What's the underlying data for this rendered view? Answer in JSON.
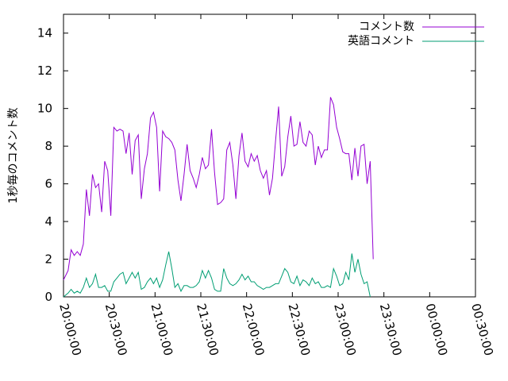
{
  "chart_data": {
    "type": "line",
    "title": "",
    "xlabel": "",
    "ylabel": "1秒毎のコメント数",
    "ylim": [
      0,
      15
    ],
    "yticks": [
      0,
      2,
      4,
      6,
      8,
      10,
      12,
      14
    ],
    "xlim": [
      "20:00:00",
      "00:30:00"
    ],
    "xtick_labels": [
      "20:00:00",
      "20:30:00",
      "21:00:00",
      "21:30:00",
      "22:00:00",
      "22:30:00",
      "23:00:00",
      "23:30:00",
      "00:00:00",
      "00:30:00"
    ],
    "legend_position": "top-right",
    "grid": false,
    "series": [
      {
        "name": "コメント数",
        "color": "#9400d3",
        "points": [
          [
            "20:00:00",
            0.9
          ],
          [
            "20:03:00",
            1.4
          ],
          [
            "20:05:00",
            2.5
          ],
          [
            "20:07:00",
            2.2
          ],
          [
            "20:09:00",
            2.4
          ],
          [
            "20:11:00",
            2.2
          ],
          [
            "20:13:00",
            2.8
          ],
          [
            "20:15:00",
            5.7
          ],
          [
            "20:17:00",
            4.3
          ],
          [
            "20:19:00",
            6.5
          ],
          [
            "20:21:00",
            5.8
          ],
          [
            "20:23:00",
            6.0
          ],
          [
            "20:25:00",
            4.5
          ],
          [
            "20:27:00",
            7.2
          ],
          [
            "20:29:00",
            6.7
          ],
          [
            "20:31:00",
            4.3
          ],
          [
            "20:33:00",
            9.0
          ],
          [
            "20:35:00",
            8.8
          ],
          [
            "20:37:00",
            8.9
          ],
          [
            "20:39:00",
            8.8
          ],
          [
            "20:41:00",
            7.6
          ],
          [
            "20:43:00",
            8.7
          ],
          [
            "20:45:00",
            6.5
          ],
          [
            "20:47:00",
            8.3
          ],
          [
            "20:49:00",
            8.6
          ],
          [
            "20:51:00",
            5.2
          ],
          [
            "20:53:00",
            6.8
          ],
          [
            "20:55:00",
            7.6
          ],
          [
            "20:57:00",
            9.5
          ],
          [
            "20:59:00",
            9.8
          ],
          [
            "21:01:00",
            9.0
          ],
          [
            "21:03:00",
            5.6
          ],
          [
            "21:05:00",
            8.8
          ],
          [
            "21:07:00",
            8.5
          ],
          [
            "21:09:00",
            8.4
          ],
          [
            "21:11:00",
            8.2
          ],
          [
            "21:13:00",
            7.8
          ],
          [
            "21:15:00",
            6.2
          ],
          [
            "21:17:00",
            5.1
          ],
          [
            "21:19:00",
            6.5
          ],
          [
            "21:21:00",
            8.1
          ],
          [
            "21:23:00",
            6.7
          ],
          [
            "21:25:00",
            6.3
          ],
          [
            "21:27:00",
            5.8
          ],
          [
            "21:29:00",
            6.5
          ],
          [
            "21:31:00",
            7.4
          ],
          [
            "21:33:00",
            6.8
          ],
          [
            "21:35:00",
            7.0
          ],
          [
            "21:37:00",
            8.9
          ],
          [
            "21:39:00",
            6.6
          ],
          [
            "21:41:00",
            4.9
          ],
          [
            "21:43:00",
            5.0
          ],
          [
            "21:45:00",
            5.2
          ],
          [
            "21:47:00",
            7.8
          ],
          [
            "21:49:00",
            8.2
          ],
          [
            "21:51:00",
            7.0
          ],
          [
            "21:53:00",
            5.2
          ],
          [
            "21:55:00",
            7.5
          ],
          [
            "21:57:00",
            8.7
          ],
          [
            "21:59:00",
            7.2
          ],
          [
            "22:01:00",
            6.9
          ],
          [
            "22:03:00",
            7.6
          ],
          [
            "22:05:00",
            7.2
          ],
          [
            "22:07:00",
            7.5
          ],
          [
            "22:09:00",
            6.7
          ],
          [
            "22:11:00",
            6.3
          ],
          [
            "22:13:00",
            6.7
          ],
          [
            "22:15:00",
            5.4
          ],
          [
            "22:17:00",
            6.3
          ],
          [
            "22:19:00",
            8.3
          ],
          [
            "22:21:00",
            10.1
          ],
          [
            "22:23:00",
            6.4
          ],
          [
            "22:25:00",
            6.9
          ],
          [
            "22:27:00",
            8.5
          ],
          [
            "22:29:00",
            9.6
          ],
          [
            "22:31:00",
            8.0
          ],
          [
            "22:33:00",
            8.1
          ],
          [
            "22:35:00",
            9.3
          ],
          [
            "22:37:00",
            8.2
          ],
          [
            "22:39:00",
            8.0
          ],
          [
            "22:41:00",
            8.8
          ],
          [
            "22:43:00",
            8.6
          ],
          [
            "22:45:00",
            7.0
          ],
          [
            "22:47:00",
            8.0
          ],
          [
            "22:49:00",
            7.4
          ],
          [
            "22:51:00",
            7.8
          ],
          [
            "22:53:00",
            7.8
          ],
          [
            "22:55:00",
            10.6
          ],
          [
            "22:57:00",
            10.2
          ],
          [
            "22:59:00",
            9.0
          ],
          [
            "23:01:00",
            8.4
          ],
          [
            "23:03:00",
            7.7
          ],
          [
            "23:05:00",
            7.6
          ],
          [
            "23:07:00",
            7.6
          ],
          [
            "23:09:00",
            6.2
          ],
          [
            "23:11:00",
            7.9
          ],
          [
            "23:13:00",
            6.4
          ],
          [
            "23:15:00",
            8.0
          ],
          [
            "23:17:00",
            8.1
          ],
          [
            "23:19:00",
            6.0
          ],
          [
            "23:21:00",
            7.2
          ],
          [
            "23:23:00",
            2.0
          ]
        ]
      },
      {
        "name": "英語コメント",
        "color": "#009e73",
        "points": [
          [
            "20:00:00",
            0.0
          ],
          [
            "20:03:00",
            0.2
          ],
          [
            "20:05:00",
            0.4
          ],
          [
            "20:07:00",
            0.2
          ],
          [
            "20:09:00",
            0.3
          ],
          [
            "20:11:00",
            0.2
          ],
          [
            "20:13:00",
            0.5
          ],
          [
            "20:15:00",
            1.0
          ],
          [
            "20:17:00",
            0.5
          ],
          [
            "20:19:00",
            0.7
          ],
          [
            "20:21:00",
            1.2
          ],
          [
            "20:23:00",
            0.5
          ],
          [
            "20:25:00",
            0.5
          ],
          [
            "20:27:00",
            0.6
          ],
          [
            "20:29:00",
            0.3
          ],
          [
            "20:31:00",
            0.3
          ],
          [
            "20:33:00",
            0.8
          ],
          [
            "20:35:00",
            1.0
          ],
          [
            "20:37:00",
            1.2
          ],
          [
            "20:39:00",
            1.3
          ],
          [
            "20:41:00",
            0.7
          ],
          [
            "20:43:00",
            1.0
          ],
          [
            "20:45:00",
            1.3
          ],
          [
            "20:47:00",
            1.0
          ],
          [
            "20:49:00",
            1.3
          ],
          [
            "20:51:00",
            0.4
          ],
          [
            "20:53:00",
            0.5
          ],
          [
            "20:55:00",
            0.8
          ],
          [
            "20:57:00",
            1.0
          ],
          [
            "20:59:00",
            0.7
          ],
          [
            "21:01:00",
            1.0
          ],
          [
            "21:03:00",
            0.5
          ],
          [
            "21:05:00",
            0.9
          ],
          [
            "21:07:00",
            1.7
          ],
          [
            "21:09:00",
            2.4
          ],
          [
            "21:11:00",
            1.5
          ],
          [
            "21:13:00",
            0.5
          ],
          [
            "21:15:00",
            0.7
          ],
          [
            "21:17:00",
            0.3
          ],
          [
            "21:19:00",
            0.6
          ],
          [
            "21:21:00",
            0.6
          ],
          [
            "21:23:00",
            0.5
          ],
          [
            "21:25:00",
            0.5
          ],
          [
            "21:27:00",
            0.6
          ],
          [
            "21:29:00",
            0.8
          ],
          [
            "21:31:00",
            1.4
          ],
          [
            "21:33:00",
            1.0
          ],
          [
            "21:35:00",
            1.4
          ],
          [
            "21:37:00",
            1.0
          ],
          [
            "21:39:00",
            0.4
          ],
          [
            "21:41:00",
            0.3
          ],
          [
            "21:43:00",
            0.3
          ],
          [
            "21:45:00",
            1.5
          ],
          [
            "21:47:00",
            1.0
          ],
          [
            "21:49:00",
            0.7
          ],
          [
            "21:51:00",
            0.6
          ],
          [
            "21:53:00",
            0.7
          ],
          [
            "21:55:00",
            0.9
          ],
          [
            "21:57:00",
            1.2
          ],
          [
            "21:59:00",
            0.9
          ],
          [
            "22:01:00",
            1.1
          ],
          [
            "22:03:00",
            0.8
          ],
          [
            "22:05:00",
            0.8
          ],
          [
            "22:07:00",
            0.6
          ],
          [
            "22:09:00",
            0.5
          ],
          [
            "22:11:00",
            0.4
          ],
          [
            "22:13:00",
            0.5
          ],
          [
            "22:15:00",
            0.5
          ],
          [
            "22:17:00",
            0.6
          ],
          [
            "22:19:00",
            0.7
          ],
          [
            "22:21:00",
            0.7
          ],
          [
            "22:23:00",
            1.1
          ],
          [
            "22:25:00",
            1.5
          ],
          [
            "22:27:00",
            1.3
          ],
          [
            "22:29:00",
            0.8
          ],
          [
            "22:31:00",
            0.7
          ],
          [
            "22:33:00",
            1.1
          ],
          [
            "22:35:00",
            0.6
          ],
          [
            "22:37:00",
            0.9
          ],
          [
            "22:39:00",
            0.8
          ],
          [
            "22:41:00",
            0.6
          ],
          [
            "22:43:00",
            1.0
          ],
          [
            "22:45:00",
            0.7
          ],
          [
            "22:47:00",
            0.8
          ],
          [
            "22:49:00",
            0.5
          ],
          [
            "22:51:00",
            0.5
          ],
          [
            "22:53:00",
            0.6
          ],
          [
            "22:55:00",
            0.5
          ],
          [
            "22:57:00",
            1.5
          ],
          [
            "22:59:00",
            1.1
          ],
          [
            "23:01:00",
            0.6
          ],
          [
            "23:03:00",
            0.7
          ],
          [
            "23:05:00",
            1.3
          ],
          [
            "23:07:00",
            0.9
          ],
          [
            "23:09:00",
            2.3
          ],
          [
            "23:11:00",
            1.3
          ],
          [
            "23:13:00",
            2.0
          ],
          [
            "23:15:00",
            1.2
          ],
          [
            "23:17:00",
            0.7
          ],
          [
            "23:19:00",
            0.8
          ],
          [
            "23:21:00",
            0.0
          ]
        ]
      }
    ]
  }
}
